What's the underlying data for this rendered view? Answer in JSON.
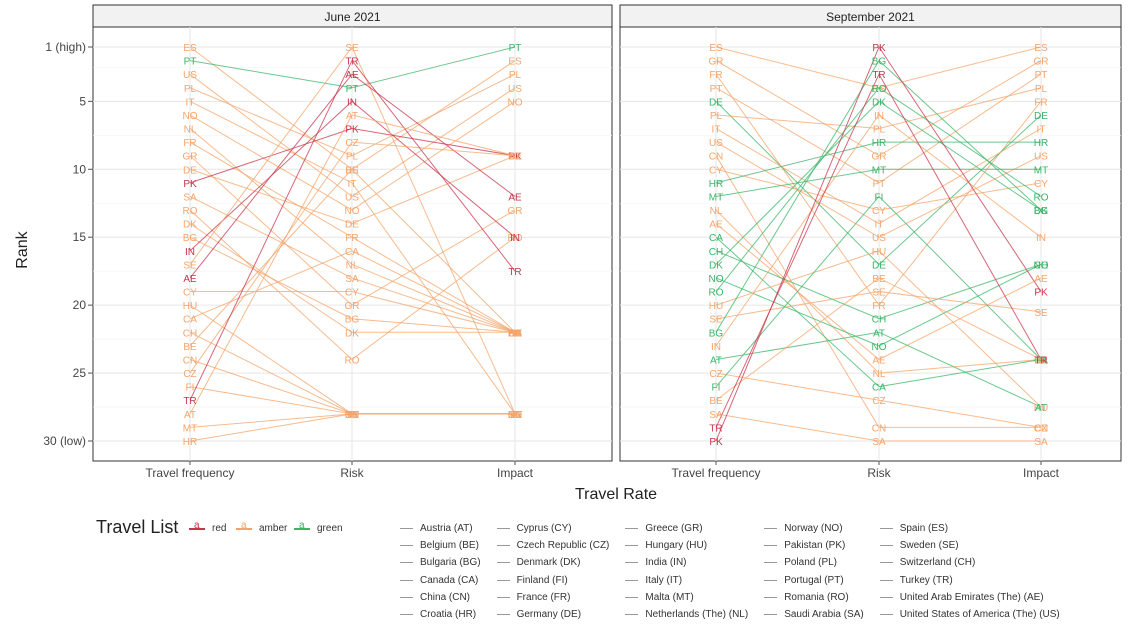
{
  "chart_data": {
    "type": "line",
    "xlabel": "Travel Rate",
    "ylabel": "Rank",
    "categories": [
      "Travel frequency",
      "Risk",
      "Impact"
    ],
    "y_ticks": [
      {
        "value": 1,
        "label": "1 (high)"
      },
      {
        "value": 5,
        "label": "5"
      },
      {
        "value": 10,
        "label": "10"
      },
      {
        "value": 15,
        "label": "15"
      },
      {
        "value": 20,
        "label": "20"
      },
      {
        "value": 25,
        "label": "25"
      },
      {
        "value": 30,
        "label": "30 (low)"
      }
    ],
    "ylim": [
      1,
      30
    ],
    "y_reversed": true,
    "grid": true,
    "colors": {
      "red": "#c8344a",
      "amber": "#f4a46a",
      "green": "#3ab567"
    },
    "panels": [
      {
        "title": "June 2021",
        "series": [
          {
            "name": "ES",
            "list": "amber",
            "values": [
              1,
              10,
              2
            ]
          },
          {
            "name": "PT",
            "list": "green",
            "values": [
              2,
              4,
              1
            ]
          },
          {
            "name": "US",
            "list": "amber",
            "values": [
              3,
              12,
              4
            ]
          },
          {
            "name": "PL",
            "list": "amber",
            "values": [
              4,
              9,
              3
            ]
          },
          {
            "name": "IT",
            "list": "amber",
            "values": [
              5,
              11,
              28
            ]
          },
          {
            "name": "NO",
            "list": "amber",
            "values": [
              6,
              13,
              5
            ]
          },
          {
            "name": "NL",
            "list": "amber",
            "values": [
              7,
              17,
              22
            ]
          },
          {
            "name": "FR",
            "list": "amber",
            "values": [
              8,
              15,
              22
            ]
          },
          {
            "name": "GR",
            "list": "amber",
            "values": [
              9,
              20,
              13
            ]
          },
          {
            "name": "DE",
            "list": "amber",
            "values": [
              10,
              14,
              9
            ]
          },
          {
            "name": "PK",
            "list": "red",
            "values": [
              11,
              7,
              9
            ]
          },
          {
            "name": "SA",
            "list": "amber",
            "values": [
              12,
              18,
              22
            ]
          },
          {
            "name": "RO",
            "list": "amber",
            "values": [
              13,
              24,
              15
            ]
          },
          {
            "name": "DK",
            "list": "amber",
            "values": [
              14,
              22,
              22
            ]
          },
          {
            "name": "BG",
            "list": "amber",
            "values": [
              15,
              21,
              22
            ]
          },
          {
            "name": "IN",
            "list": "red",
            "values": [
              16,
              5,
              15
            ]
          },
          {
            "name": "SE",
            "list": "amber",
            "values": [
              17,
              1,
              28
            ]
          },
          {
            "name": "AE",
            "list": "red",
            "values": [
              18,
              3,
              12
            ]
          },
          {
            "name": "CY",
            "list": "amber",
            "values": [
              19,
              19,
              22
            ]
          },
          {
            "name": "HU",
            "list": "amber",
            "values": [
              20,
              28,
              28
            ]
          },
          {
            "name": "CA",
            "list": "amber",
            "values": [
              21,
              16,
              22
            ]
          },
          {
            "name": "CH",
            "list": "amber",
            "values": [
              22,
              28,
              28
            ]
          },
          {
            "name": "BE",
            "list": "amber",
            "values": [
              23,
              10,
              22
            ]
          },
          {
            "name": "CN",
            "list": "amber",
            "values": [
              24,
              28,
              28
            ]
          },
          {
            "name": "CZ",
            "list": "amber",
            "values": [
              25,
              8,
              9
            ]
          },
          {
            "name": "FI",
            "list": "amber",
            "values": [
              26,
              28,
              28
            ]
          },
          {
            "name": "TR",
            "list": "red",
            "values": [
              27,
              2,
              17.5
            ]
          },
          {
            "name": "AT",
            "list": "amber",
            "values": [
              28,
              6,
              9
            ]
          },
          {
            "name": "MT",
            "list": "amber",
            "values": [
              29,
              28,
              28
            ]
          },
          {
            "name": "HR",
            "list": "amber",
            "values": [
              30,
              28,
              28
            ]
          }
        ]
      },
      {
        "title": "September 2021",
        "series": [
          {
            "name": "ES",
            "list": "amber",
            "values": [
              1,
              4,
              1
            ]
          },
          {
            "name": "GR",
            "list": "amber",
            "values": [
              2,
              9,
              2
            ]
          },
          {
            "name": "FR",
            "list": "amber",
            "values": [
              3,
              20,
              5
            ]
          },
          {
            "name": "PT",
            "list": "amber",
            "values": [
              4,
              11,
              3
            ]
          },
          {
            "name": "DE",
            "list": "green",
            "values": [
              5,
              17,
              6
            ]
          },
          {
            "name": "PL",
            "list": "amber",
            "values": [
              6,
              7,
              4
            ]
          },
          {
            "name": "IT",
            "list": "amber",
            "values": [
              7,
              14,
              7
            ]
          },
          {
            "name": "US",
            "list": "amber",
            "values": [
              8,
              15,
              9
            ]
          },
          {
            "name": "CN",
            "list": "amber",
            "values": [
              9,
              29,
              29
            ]
          },
          {
            "name": "CY",
            "list": "amber",
            "values": [
              10,
              13,
              11
            ]
          },
          {
            "name": "HR",
            "list": "green",
            "values": [
              11,
              8,
              8
            ]
          },
          {
            "name": "MT",
            "list": "green",
            "values": [
              12,
              10,
              10
            ]
          },
          {
            "name": "NL",
            "list": "amber",
            "values": [
              13,
              25,
              24
            ]
          },
          {
            "name": "AE",
            "list": "amber",
            "values": [
              14,
              24,
              18
            ]
          },
          {
            "name": "CA",
            "list": "green",
            "values": [
              15,
              26,
              24
            ]
          },
          {
            "name": "CH",
            "list": "green",
            "values": [
              16,
              21,
              17
            ]
          },
          {
            "name": "DK",
            "list": "green",
            "values": [
              17,
              5,
              13
            ]
          },
          {
            "name": "NO",
            "list": "green",
            "values": [
              18,
              23,
              17
            ]
          },
          {
            "name": "RO",
            "list": "green",
            "values": [
              19,
              4,
              12
            ]
          },
          {
            "name": "HU",
            "list": "amber",
            "values": [
              20,
              16,
              27.5
            ]
          },
          {
            "name": "SE",
            "list": "amber",
            "values": [
              21,
              19,
              20.5
            ]
          },
          {
            "name": "BG",
            "list": "green",
            "values": [
              22,
              2,
              13
            ]
          },
          {
            "name": "IN",
            "list": "amber",
            "values": [
              23,
              6,
              15
            ]
          },
          {
            "name": "AT",
            "list": "green",
            "values": [
              24,
              22,
              27.5
            ]
          },
          {
            "name": "CZ",
            "list": "amber",
            "values": [
              25,
              27,
              29
            ]
          },
          {
            "name": "FI",
            "list": "green",
            "values": [
              26,
              12,
              24
            ]
          },
          {
            "name": "BE",
            "list": "amber",
            "values": [
              27,
              18,
              24
            ]
          },
          {
            "name": "SA",
            "list": "amber",
            "values": [
              28,
              30,
              30
            ]
          },
          {
            "name": "TR",
            "list": "red",
            "values": [
              29,
              3,
              24
            ]
          },
          {
            "name": "PK",
            "list": "red",
            "values": [
              30,
              1,
              19
            ]
          }
        ]
      }
    ]
  },
  "legend": {
    "title": "Travel List",
    "keys": [
      {
        "label": "red",
        "color": "#c8344a"
      },
      {
        "label": "amber",
        "color": "#f4a46a"
      },
      {
        "label": "green",
        "color": "#3ab567"
      }
    ],
    "countries": [
      "Austria (AT)",
      "Belgium (BE)",
      "Bulgaria (BG)",
      "Canada (CA)",
      "China (CN)",
      "Croatia (HR)",
      "Cyprus (CY)",
      "Czech Republic (CZ)",
      "Denmark (DK)",
      "Finland (FI)",
      "France (FR)",
      "Germany (DE)",
      "Greece (GR)",
      "Hungary (HU)",
      "India (IN)",
      "Italy (IT)",
      "Malta (MT)",
      "Netherlands (The) (NL)",
      "Norway (NO)",
      "Pakistan (PK)",
      "Poland (PL)",
      "Portugal (PT)",
      "Romania (RO)",
      "Saudi Arabia (SA)",
      "Spain (ES)",
      "Sweden (SE)",
      "Switzerland (CH)",
      "Turkey (TR)",
      "United Arab Emirates (The) (AE)",
      "United States of America (The) (US)"
    ]
  }
}
